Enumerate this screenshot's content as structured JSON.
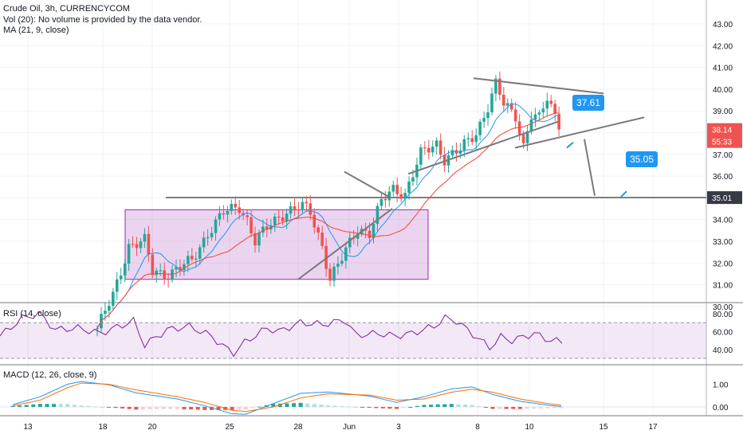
{
  "header": {
    "title": "Crude Oil, 3h, CURRENCYCOM",
    "vol_label": "Vol (20): No volume is provided by the data vendor.",
    "ma_label": "MA (21, 9, close)"
  },
  "rsi": {
    "label": "RSI (14, close)",
    "ticks": [
      "80.00",
      "60.00",
      "40.00"
    ]
  },
  "macd": {
    "label": "MACD (12, 26, close, 9)",
    "ticks": [
      "1.00",
      "0.00"
    ]
  },
  "price_axis": {
    "ticks": [
      "43.00",
      "42.00",
      "41.00",
      "40.00",
      "39.00",
      "38.00",
      "37.00",
      "36.00",
      "35.00",
      "34.00",
      "33.00",
      "32.00",
      "31.00",
      "30.00"
    ],
    "current_price": "38.14",
    "countdown": "55:33",
    "level_label": "35.01"
  },
  "time_axis": {
    "ticks": [
      "13",
      "18",
      "20",
      "25",
      "28",
      "Jun",
      "3",
      "8",
      "10",
      "15",
      "17"
    ]
  },
  "annotations": {
    "target1": "37.61",
    "target2": "35.05"
  },
  "colors": {
    "up": "#26a69a",
    "down": "#ef5350",
    "ma_fast": "#2196f3",
    "ma_slow": "#f44336",
    "rsi": "#7b1fa2",
    "macd": "#2196f3",
    "signal": "#ff6d00",
    "box": "#9c27b0",
    "callout": "#2196f3"
  },
  "chart_data": {
    "type": "candlestick",
    "title": "Crude Oil, 3h, CURRENCYCOM",
    "ylim": [
      29.5,
      43.0
    ],
    "resistance_level": 35.01,
    "price_path": [
      [
        0,
        29.0
      ],
      [
        4,
        30.5
      ],
      [
        8,
        32.8
      ],
      [
        12,
        33.0
      ],
      [
        14,
        31.6
      ],
      [
        18,
        31.5
      ],
      [
        24,
        32.1
      ],
      [
        28,
        33.4
      ],
      [
        32,
        34.3
      ],
      [
        36,
        34.6
      ],
      [
        38,
        34.0
      ],
      [
        40,
        33.0
      ],
      [
        44,
        33.8
      ],
      [
        48,
        34.4
      ],
      [
        52,
        34.6
      ],
      [
        54,
        34.3
      ],
      [
        57,
        32.8
      ],
      [
        59,
        31.3
      ],
      [
        62,
        32.2
      ],
      [
        66,
        33.6
      ],
      [
        69,
        33.4
      ],
      [
        72,
        34.8
      ],
      [
        75,
        35.4
      ],
      [
        78,
        35.2
      ],
      [
        82,
        37.0
      ],
      [
        86,
        37.5
      ],
      [
        88,
        36.8
      ],
      [
        92,
        37.2
      ],
      [
        96,
        38.0
      ],
      [
        99,
        39.2
      ],
      [
        101,
        40.2
      ],
      [
        103,
        39.3
      ],
      [
        106,
        38.8
      ],
      [
        108,
        37.4
      ],
      [
        110,
        38.8
      ],
      [
        112,
        38.6
      ],
      [
        114,
        39.6
      ],
      [
        116,
        38.8
      ],
      [
        117,
        38.14
      ]
    ],
    "rsi_path": [
      [
        0,
        55
      ],
      [
        4,
        75
      ],
      [
        7,
        80
      ],
      [
        10,
        62
      ],
      [
        14,
        64
      ],
      [
        18,
        58
      ],
      [
        24,
        72
      ],
      [
        26,
        45
      ],
      [
        30,
        62
      ],
      [
        34,
        66
      ],
      [
        38,
        55
      ],
      [
        40,
        44
      ],
      [
        42,
        36
      ],
      [
        44,
        48
      ],
      [
        48,
        64
      ],
      [
        50,
        60
      ],
      [
        54,
        70
      ],
      [
        58,
        68
      ],
      [
        62,
        73
      ],
      [
        64,
        56
      ],
      [
        68,
        58
      ],
      [
        71,
        55
      ],
      [
        74,
        58
      ],
      [
        78,
        66
      ],
      [
        80,
        75
      ],
      [
        82,
        72
      ],
      [
        86,
        52
      ],
      [
        88,
        42
      ],
      [
        90,
        54
      ],
      [
        92,
        50
      ],
      [
        96,
        58
      ],
      [
        98,
        52
      ],
      [
        101,
        48
      ]
    ],
    "macd_path": [
      [
        0,
        0.1
      ],
      [
        4,
        0.45
      ],
      [
        8,
        1.0
      ],
      [
        10,
        1.12
      ],
      [
        14,
        0.98
      ],
      [
        18,
        0.62
      ],
      [
        24,
        0.35
      ],
      [
        28,
        0.05
      ],
      [
        32,
        -0.3
      ],
      [
        34,
        -0.32
      ],
      [
        38,
        0.15
      ],
      [
        42,
        0.6
      ],
      [
        46,
        0.66
      ],
      [
        52,
        0.48
      ],
      [
        56,
        0.2
      ],
      [
        60,
        0.45
      ],
      [
        64,
        0.8
      ],
      [
        67,
        0.88
      ],
      [
        70,
        0.55
      ],
      [
        74,
        0.25
      ],
      [
        78,
        0.08
      ],
      [
        80,
        0.02
      ]
    ],
    "signal_path": [
      [
        0,
        0.05
      ],
      [
        4,
        0.3
      ],
      [
        8,
        0.85
      ],
      [
        10,
        1.05
      ],
      [
        14,
        1.0
      ],
      [
        18,
        0.75
      ],
      [
        24,
        0.45
      ],
      [
        28,
        0.2
      ],
      [
        32,
        -0.15
      ],
      [
        34,
        -0.2
      ],
      [
        38,
        0.0
      ],
      [
        42,
        0.4
      ],
      [
        46,
        0.58
      ],
      [
        52,
        0.52
      ],
      [
        56,
        0.3
      ],
      [
        60,
        0.35
      ],
      [
        64,
        0.65
      ],
      [
        67,
        0.78
      ],
      [
        70,
        0.65
      ],
      [
        74,
        0.35
      ],
      [
        78,
        0.15
      ],
      [
        80,
        0.08
      ]
    ]
  }
}
